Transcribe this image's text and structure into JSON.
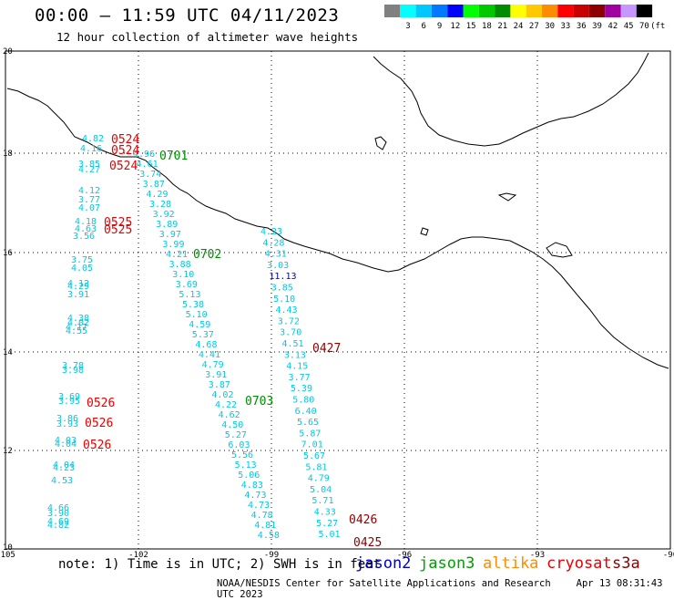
{
  "title": "00:00 – 11:59 UTC 04/11/2023",
  "subtitle": "12 hour collection of altimeter wave heights",
  "colorbar": {
    "unit": "(ft)",
    "bins": [
      {
        "label": "",
        "color": "#808080"
      },
      {
        "label": "3",
        "color": "#00ffff"
      },
      {
        "label": "6",
        "color": "#00c8ff"
      },
      {
        "label": "9",
        "color": "#0078ff"
      },
      {
        "label": "12",
        "color": "#0000ff"
      },
      {
        "label": "15",
        "color": "#00ff00"
      },
      {
        "label": "18",
        "color": "#00c800"
      },
      {
        "label": "21",
        "color": "#008c00"
      },
      {
        "label": "24",
        "color": "#ffff00"
      },
      {
        "label": "27",
        "color": "#ffc800"
      },
      {
        "label": "30",
        "color": "#ff8c00"
      },
      {
        "label": "33",
        "color": "#ff0000"
      },
      {
        "label": "36",
        "color": "#c80000"
      },
      {
        "label": "39",
        "color": "#8c0000"
      },
      {
        "label": "42",
        "color": "#a000a0"
      },
      {
        "label": "45",
        "color": "#c896ff"
      },
      {
        "label": "70",
        "color": "#000000"
      }
    ]
  },
  "axes": {
    "lon_ticks": [
      "-105",
      "-102",
      "-99",
      "-96",
      "-93",
      "-90"
    ],
    "lat_ticks": [
      "20",
      "18",
      "16",
      "14",
      "12",
      "10"
    ]
  },
  "colors": {
    "cyan": "#00c8e6",
    "red": "#e60000",
    "green": "#008c00",
    "darkred": "#8c0000",
    "blue": "#0000c8"
  },
  "pass_labels": [
    {
      "text": "0524",
      "color": "red"
    },
    {
      "text": "0524",
      "color": "red"
    },
    {
      "text": "0524",
      "color": "red"
    },
    {
      "text": "0701",
      "color": "green"
    },
    {
      "text": "0525",
      "color": "red"
    },
    {
      "text": "0525",
      "color": "red"
    },
    {
      "text": "0702",
      "color": "green"
    },
    {
      "text": "0427",
      "color": "darkred"
    },
    {
      "text": "0703",
      "color": "green"
    },
    {
      "text": "0526",
      "color": "red"
    },
    {
      "text": "0526",
      "color": "red"
    },
    {
      "text": "0526",
      "color": "red"
    },
    {
      "text": "0426",
      "color": "darkred"
    },
    {
      "text": "0425",
      "color": "darkred"
    }
  ],
  "track_a": [
    "4.82",
    "4.16",
    "3.85",
    "4.27",
    "4.12",
    "3.77",
    "4.07",
    "4.18",
    "4.63",
    "3.56",
    "3.75",
    "4.05",
    "4.12",
    "4.29",
    "3.91",
    "4.38",
    "4.02",
    "4.17",
    "4.55",
    "3.78",
    "3.98",
    "3.69",
    "3.95",
    "3.86",
    "3.93",
    "4.03",
    "4.04",
    "4.04",
    "4.23",
    "4.53",
    "4.66",
    "3.90",
    "4.69",
    "4.82"
  ],
  "track_b": [
    "4.96",
    "4.61",
    "3.74",
    "3.87",
    "4.29",
    "3.28",
    "3.92",
    "3.89",
    "3.97",
    "3.99",
    "4.21",
    "3.88",
    "3.10",
    "3.69",
    "5.13",
    "5.38",
    "5.10",
    "4.59",
    "5.37",
    "4.68",
    "4.41",
    "4.79",
    "3.91",
    "3.87",
    "4.02",
    "4.22",
    "4.62",
    "4.50",
    "5.27",
    "6.03",
    "5.56",
    "5.13",
    "5.06",
    "4.83",
    "4.73",
    "4.73",
    "4.78",
    "4.81",
    "4.58"
  ],
  "track_c": [
    {
      "v": "4.23",
      "c": "cyan"
    },
    {
      "v": "4.28",
      "c": "cyan"
    },
    {
      "v": "4.31",
      "c": "cyan"
    },
    {
      "v": "3.03",
      "c": "cyan"
    },
    {
      "v": "11.13",
      "c": "blue"
    },
    {
      "v": "3.85",
      "c": "cyan"
    },
    {
      "v": "5.10",
      "c": "cyan"
    },
    {
      "v": "4.43",
      "c": "cyan"
    },
    {
      "v": "3.72",
      "c": "cyan"
    },
    {
      "v": "3.70",
      "c": "cyan"
    },
    {
      "v": "4.51",
      "c": "cyan"
    },
    {
      "v": "3.13",
      "c": "cyan"
    },
    {
      "v": "4.15",
      "c": "cyan"
    },
    {
      "v": "3.77",
      "c": "cyan"
    },
    {
      "v": "5.39",
      "c": "cyan"
    },
    {
      "v": "5.80",
      "c": "cyan"
    },
    {
      "v": "6.40",
      "c": "cyan"
    },
    {
      "v": "5.65",
      "c": "cyan"
    },
    {
      "v": "5.87",
      "c": "cyan"
    },
    {
      "v": "7.01",
      "c": "cyan"
    },
    {
      "v": "5.67",
      "c": "cyan"
    },
    {
      "v": "5.81",
      "c": "cyan"
    },
    {
      "v": "4.79",
      "c": "cyan"
    },
    {
      "v": "5.04",
      "c": "cyan"
    },
    {
      "v": "5.71",
      "c": "cyan"
    },
    {
      "v": "4.33",
      "c": "cyan"
    },
    {
      "v": "5.27",
      "c": "cyan"
    },
    {
      "v": "5.01",
      "c": "cyan"
    }
  ],
  "note": "note: 1) Time is in UTC; 2) SWH is in feet",
  "missions": [
    {
      "name": "jason2",
      "color": "#0000c8"
    },
    {
      "name": "jason3",
      "color": "#00a000"
    },
    {
      "name": "altika",
      "color": "#ff8c00"
    },
    {
      "name": "cryosat",
      "color": "#e60000"
    },
    {
      "name": "s3a",
      "color": "#8c0000"
    }
  ],
  "credit": "NOAA/NESDIS Center for Satellite Applications and Research",
  "timestamp": "Apr 13 08:31:43 UTC 2023"
}
